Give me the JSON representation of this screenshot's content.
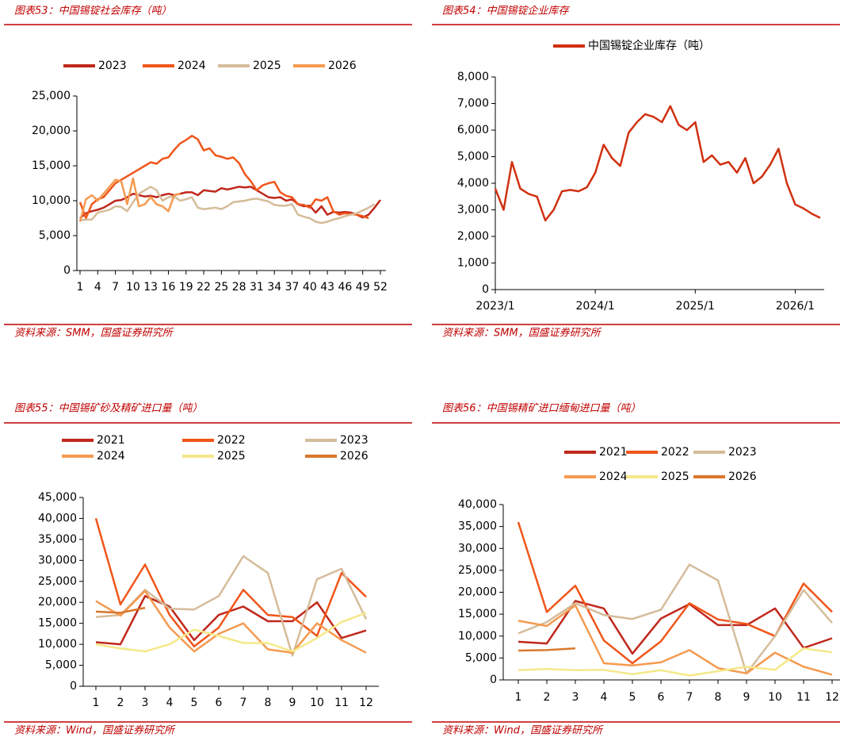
{
  "chart_data": [
    {
      "type": "line",
      "title": "图表53：中国锡锭社会库存（吨）",
      "source": "资料来源：SMM，国盛证券研究所",
      "categories": [
        "1",
        null,
        null,
        "4",
        null,
        null,
        "7",
        null,
        null,
        "10",
        null,
        null,
        "13",
        null,
        null,
        "16",
        null,
        null,
        "19",
        null,
        null,
        "22",
        null,
        null,
        "25",
        null,
        null,
        "28",
        null,
        null,
        "31",
        null,
        null,
        "34",
        null,
        null,
        "37",
        null,
        null,
        "40",
        null,
        null,
        "43",
        null,
        null,
        "46",
        null,
        null,
        "49",
        null,
        null,
        "52"
      ],
      "ylim": [
        0,
        25000
      ],
      "yticks": [
        0,
        {
          "value": 5000,
          "label": "5,000"
        },
        {
          "value": 10000,
          "label": "10,000"
        },
        {
          "value": 15000,
          "label": "15,000"
        },
        {
          "value": 20000,
          "label": "20,000"
        },
        {
          "value": 25000,
          "label": "25,000"
        }
      ],
      "legend": "top",
      "series": [
        {
          "name": "2023",
          "color": "#c0281c",
          "values": [
            7500,
            8200,
            8500,
            8700,
            9000,
            9500,
            10000,
            10100,
            10500,
            11000,
            10800,
            10600,
            10700,
            10500,
            10800,
            11000,
            10800,
            11000,
            11200,
            11200,
            10800,
            11500,
            11400,
            11300,
            11800,
            11600,
            11800,
            12000,
            11900,
            12000,
            11500,
            11000,
            10500,
            10400,
            10500,
            10000,
            10200,
            9500,
            9200,
            9300,
            8300,
            9200,
            8000,
            8400,
            8300,
            8400,
            8300,
            8000,
            7600,
            8000,
            9000,
            10100
          ]
        },
        {
          "name": "2024",
          "color": "#f0561a",
          "values": [
            9800,
            7500,
            9500,
            10200,
            10500,
            11500,
            12500,
            13000,
            13500,
            14000,
            14500,
            15000,
            15500,
            15300,
            16000,
            16200,
            17300,
            18200,
            18700,
            19300,
            18800,
            17200,
            17500,
            16500,
            16300,
            16000,
            16200,
            15400,
            13800,
            12800,
            11500,
            12200,
            12500,
            12700,
            11200,
            10700,
            10500,
            9500,
            9400,
            9000,
            10200,
            10000,
            10500,
            8500,
            8000,
            8200,
            8100,
            8000,
            7800,
            7500,
            null,
            null
          ]
        },
        {
          "name": "2025",
          "color": "#d5bc9a",
          "values": [
            7200,
            7300,
            7300,
            8300,
            8500,
            8700,
            9200,
            9100,
            8500,
            9800,
            11000,
            11500,
            12000,
            11500,
            10000,
            10500,
            10600,
            10000,
            10200,
            10500,
            9000,
            8800,
            8900,
            9000,
            8800,
            9200,
            9800,
            9900,
            10000,
            10200,
            10300,
            10100,
            9900,
            9400,
            9300,
            9300,
            9500,
            8000,
            7700,
            7500,
            7000,
            6800,
            7000,
            7300,
            7500,
            7800,
            8000,
            8200,
            8600,
            9000,
            9500,
            null
          ]
        },
        {
          "name": "2026",
          "color": "#f59a50",
          "values": [
            7000,
            10200,
            10800,
            10000,
            11000,
            12000,
            13000,
            12800,
            9500,
            13200,
            9200,
            9500,
            10500,
            9500,
            9200,
            8500,
            10800,
            11000,
            null,
            null,
            null,
            null,
            null,
            null,
            null,
            null,
            null,
            null,
            null,
            null,
            null,
            null,
            null,
            null,
            null,
            null,
            null,
            null,
            null,
            null,
            null,
            null,
            null,
            null,
            null,
            null,
            null,
            null,
            null,
            null,
            null,
            null
          ]
        }
      ]
    },
    {
      "type": "line",
      "title": "图表54：中国锡锭企业库存",
      "source": "资料来源：SMM，国盛证券研究所",
      "categories": [
        "2023/1",
        null,
        null,
        null,
        null,
        null,
        null,
        null,
        null,
        null,
        null,
        null,
        "2024/1",
        null,
        null,
        null,
        null,
        null,
        null,
        null,
        null,
        null,
        null,
        null,
        "2025/1",
        null,
        null,
        null,
        null,
        null,
        null,
        null,
        null,
        null,
        null,
        null,
        "2026/1",
        null,
        null,
        null
      ],
      "ylim": [
        0,
        8000
      ],
      "yticks": [
        0,
        {
          "value": 1000,
          "label": "1,000"
        },
        {
          "value": 2000,
          "label": "2,000"
        },
        {
          "value": 3000,
          "label": "3,000"
        },
        {
          "value": 4000,
          "label": "4,000"
        },
        {
          "value": 5000,
          "label": "5,000"
        },
        {
          "value": 6000,
          "label": "6,000"
        },
        {
          "value": 7000,
          "label": "7,000"
        },
        {
          "value": 8000,
          "label": "8,000"
        }
      ],
      "legend": "top",
      "series": [
        {
          "name": "中国锡锭企业库存（吨）",
          "color": "#d03010",
          "values": [
            3800,
            3000,
            4800,
            3800,
            3600,
            3500,
            2600,
            3000,
            3700,
            3750,
            3700,
            3850,
            4400,
            5450,
            4950,
            4650,
            5900,
            6300,
            6600,
            6500,
            6300,
            6900,
            6200,
            6000,
            6300,
            4800,
            5050,
            4700,
            4800,
            4400,
            4950,
            4000,
            4250,
            4700,
            5300,
            4000,
            3200,
            3050,
            2850,
            2700
          ]
        }
      ]
    },
    {
      "type": "line",
      "title": "图表55：中国锡矿砂及精矿进口量（吨）",
      "source": "资料来源：Wind，国盛证券研究所",
      "categories": [
        "1",
        "2",
        "3",
        "4",
        "5",
        "6",
        "7",
        "8",
        "9",
        "10",
        "11",
        "12"
      ],
      "ylim": [
        0,
        45000
      ],
      "yticks": [
        0,
        {
          "value": 5000,
          "label": "5,000"
        },
        {
          "value": 10000,
          "label": "10,000"
        },
        {
          "value": 15000,
          "label": "15,000"
        },
        {
          "value": 20000,
          "label": "20,000"
        },
        {
          "value": 25000,
          "label": "25,000"
        },
        {
          "value": 30000,
          "label": "30,000"
        },
        {
          "value": 35000,
          "label": "35,000"
        },
        {
          "value": 40000,
          "label": "40,000"
        },
        {
          "value": 45000,
          "label": "45,000"
        }
      ],
      "legend": "top",
      "series": [
        {
          "name": "2021",
          "color": "#c0281c",
          "values": [
            10500,
            10000,
            21500,
            19000,
            11000,
            17000,
            19000,
            15500,
            15500,
            20000,
            11500,
            13300
          ]
        },
        {
          "name": "2022",
          "color": "#f0561a",
          "values": [
            40000,
            19500,
            29000,
            17000,
            9500,
            14000,
            23000,
            17000,
            16500,
            12000,
            27000,
            21300
          ]
        },
        {
          "name": "2023",
          "color": "#d5bc9a",
          "values": [
            16500,
            17000,
            23000,
            18500,
            18300,
            21500,
            31000,
            27000,
            7300,
            25500,
            28000,
            16000
          ]
        },
        {
          "name": "2024",
          "color": "#f59a50",
          "values": [
            20300,
            16800,
            22700,
            14000,
            8300,
            12500,
            15000,
            8800,
            8000,
            15000,
            11000,
            8000
          ]
        },
        {
          "name": "2025",
          "color": "#f5e88a",
          "values": [
            10000,
            9000,
            8300,
            10000,
            13500,
            12000,
            10300,
            10300,
            8300,
            11500,
            15300,
            17500
          ]
        },
        {
          "name": "2026",
          "color": "#d9782e",
          "values": [
            17800,
            17500,
            18700,
            null,
            null,
            null,
            null,
            null,
            null,
            null,
            null,
            null
          ]
        }
      ]
    },
    {
      "type": "line",
      "title": "图表56：中国锡精矿进口缅甸进口量（吨）",
      "source": "资料来源：Wind，国盛证券研究所",
      "categories": [
        "1",
        "2",
        "3",
        "4",
        "5",
        "6",
        "7",
        "8",
        "9",
        "10",
        "11",
        "12"
      ],
      "ylim": [
        0,
        40000
      ],
      "yticks": [
        0,
        {
          "value": 5000,
          "label": "5,000"
        },
        {
          "value": 10000,
          "label": "10,000"
        },
        {
          "value": 15000,
          "label": "15,000"
        },
        {
          "value": 20000,
          "label": "20,000"
        },
        {
          "value": 25000,
          "label": "25,000"
        },
        {
          "value": 30000,
          "label": "30,000"
        },
        {
          "value": 35000,
          "label": "35,000"
        },
        {
          "value": 40000,
          "label": "40,000"
        }
      ],
      "legend": "top",
      "series": [
        {
          "name": "2021",
          "color": "#c0281c",
          "values": [
            8700,
            8300,
            18000,
            16300,
            6000,
            14000,
            17300,
            12500,
            12500,
            16300,
            7300,
            9500
          ]
        },
        {
          "name": "2022",
          "color": "#f0561a",
          "values": [
            36000,
            15500,
            21500,
            9000,
            3800,
            8800,
            17500,
            13800,
            12800,
            10000,
            22000,
            15500
          ]
        },
        {
          "name": "2023",
          "color": "#d5bc9a",
          "values": [
            10600,
            13200,
            17500,
            14800,
            13900,
            16000,
            26300,
            22700,
            1500,
            10000,
            20500,
            13000
          ]
        },
        {
          "name": "2024",
          "color": "#f59a50",
          "values": [
            13500,
            12300,
            17000,
            3800,
            3300,
            4000,
            6800,
            2700,
            1500,
            6200,
            3000,
            1200
          ]
        },
        {
          "name": "2025",
          "color": "#f5e88a",
          "values": [
            2200,
            2500,
            2200,
            2300,
            1300,
            2200,
            1000,
            2000,
            3000,
            2300,
            7200,
            6300
          ]
        },
        {
          "name": "2026",
          "color": "#d9782e",
          "values": [
            6700,
            6800,
            7200,
            null,
            null,
            null,
            null,
            null,
            null,
            null,
            null,
            null
          ]
        }
      ]
    }
  ]
}
